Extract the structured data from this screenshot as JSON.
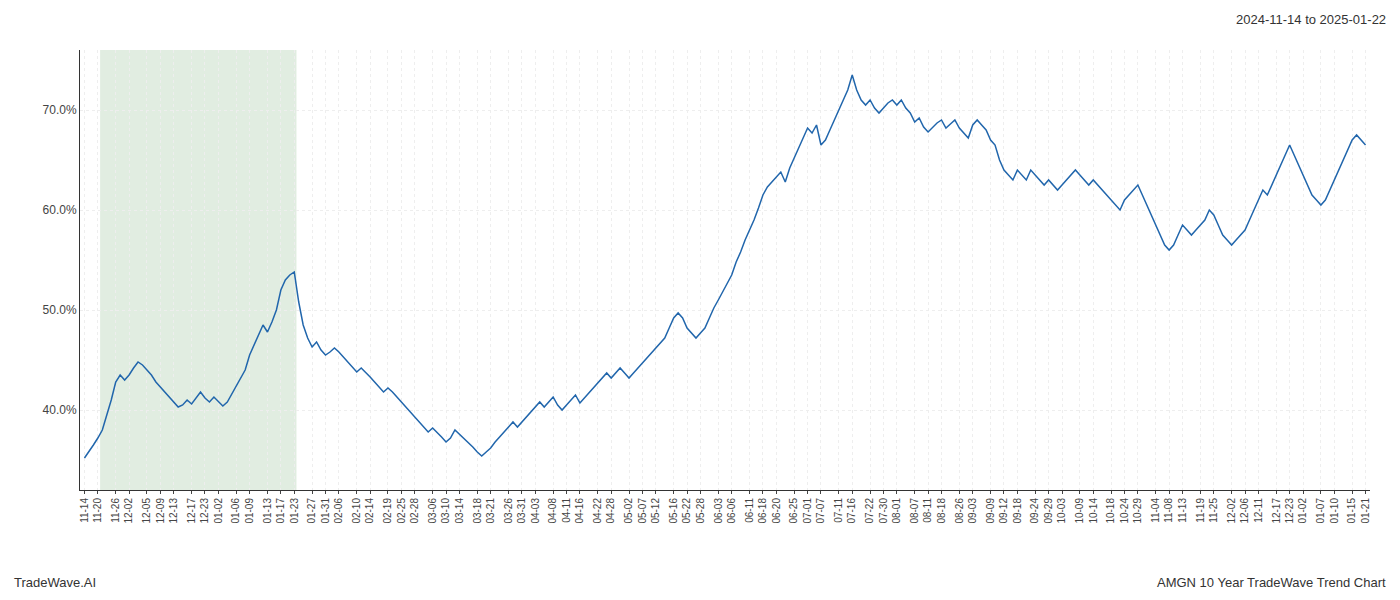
{
  "chart_data": {
    "type": "line",
    "annotations": [
      {
        "text": "2024-11-14 to 2025-01-22",
        "position": "top-right"
      },
      {
        "text": "TradeWave.AI",
        "position": "bottom-left"
      },
      {
        "text": "AMGN 10 Year TradeWave Trend Chart",
        "position": "bottom-right"
      }
    ],
    "color": "#2166ac",
    "shaded_span": {
      "start": 4,
      "end": 47,
      "color": "#c8dfc8"
    },
    "ylim": [
      32,
      76
    ],
    "yticks": [
      {
        "value": 40.0,
        "label": "40.0%"
      },
      {
        "value": 50.0,
        "label": "50.0%"
      },
      {
        "value": 60.0,
        "label": "60.0%"
      },
      {
        "value": 70.0,
        "label": "70.0%"
      }
    ],
    "grid": true,
    "categories": [
      "11-14",
      null,
      null,
      "11-20",
      null,
      null,
      null,
      "11-26",
      null,
      null,
      "12-02",
      null,
      null,
      null,
      "12-05",
      null,
      null,
      "12-09",
      null,
      null,
      "12-13",
      null,
      null,
      null,
      "12-17",
      null,
      null,
      "12-23",
      null,
      null,
      "01-02",
      null,
      null,
      null,
      "01-06",
      null,
      null,
      "01-09",
      null,
      null,
      null,
      "01-13",
      null,
      null,
      "01-17",
      null,
      null,
      "01-23",
      null,
      null,
      null,
      "01-27",
      null,
      null,
      "01-31",
      null,
      null,
      "02-06",
      null,
      null,
      null,
      "02-10",
      null,
      null,
      "02-14",
      null,
      null,
      null,
      "02-19",
      null,
      null,
      "02-25",
      null,
      null,
      "02-28",
      null,
      null,
      null,
      "03-06",
      null,
      null,
      "03-10",
      null,
      null,
      "03-14",
      null,
      null,
      null,
      "03-18",
      null,
      null,
      "03-21",
      null,
      null,
      null,
      "03-26",
      null,
      null,
      "03-31",
      null,
      null,
      "04-03",
      null,
      null,
      null,
      "04-08",
      null,
      null,
      "04-11",
      null,
      null,
      "04-16",
      null,
      null,
      null,
      "04-22",
      null,
      null,
      "04-28",
      null,
      null,
      null,
      "05-02",
      null,
      null,
      "05-07",
      null,
      null,
      "05-12",
      null,
      null,
      null,
      "05-16",
      null,
      null,
      "05-22",
      null,
      null,
      "05-28",
      null,
      null,
      null,
      "06-03",
      null,
      null,
      "06-06",
      null,
      null,
      null,
      "06-11",
      null,
      null,
      "06-18",
      null,
      null,
      "06-20",
      null,
      null,
      null,
      "06-25",
      null,
      null,
      "07-01",
      null,
      null,
      "07-07",
      null,
      null,
      null,
      "07-11",
      null,
      null,
      "07-16",
      null,
      null,
      null,
      "07-22",
      null,
      null,
      "07-30",
      null,
      null,
      "08-01",
      null,
      null,
      null,
      "08-07",
      null,
      null,
      "08-11",
      null,
      null,
      "08-18",
      null,
      null,
      null,
      "08-26",
      null,
      null,
      "09-03",
      null,
      null,
      null,
      "09-09",
      null,
      null,
      "09-12",
      null,
      null,
      "09-18",
      null,
      null,
      null,
      "09-24",
      null,
      null,
      "09-29",
      null,
      null,
      "10-03",
      null,
      null,
      null,
      "10-09",
      null,
      null,
      "10-14",
      null,
      null,
      null,
      "10-18",
      null,
      null,
      "10-24",
      null,
      null,
      "10-29",
      null,
      null,
      null,
      "11-04",
      null,
      null,
      "11-08",
      null,
      null,
      "11-13",
      null,
      null,
      null,
      "11-19",
      null,
      null,
      "11-25",
      null,
      null,
      null,
      "12-02",
      null,
      null,
      "12-06",
      null,
      null,
      "12-11",
      null,
      null,
      null,
      "12-17",
      null,
      null,
      "12-23",
      null,
      null,
      "01-02",
      null,
      null,
      null,
      "01-07",
      null,
      null,
      "01-10",
      null,
      null,
      null,
      "01-15",
      null,
      null,
      "01-21"
    ],
    "values": [
      35.2,
      35.8,
      36.5,
      37.2,
      38.0,
      39.5,
      41.0,
      42.8,
      43.5,
      43.0,
      43.5,
      44.2,
      44.8,
      44.5,
      44.0,
      43.5,
      42.8,
      42.3,
      41.8,
      41.2,
      40.8,
      40.3,
      40.5,
      41.0,
      40.6,
      41.2,
      41.8,
      41.2,
      40.8,
      41.3,
      40.9,
      40.4,
      40.8,
      41.6,
      42.3,
      43.2,
      44.0,
      45.5,
      46.5,
      47.5,
      48.5,
      47.8,
      48.8,
      50.0,
      52.0,
      53.0,
      53.5,
      53.8,
      50.8,
      48.5,
      47.2,
      46.3,
      46.8,
      46.0,
      45.5,
      45.8,
      46.2,
      45.8,
      45.3,
      44.8,
      44.3,
      43.8,
      44.2,
      43.8,
      43.3,
      42.8,
      42.3,
      41.8,
      42.2,
      41.8,
      41.3,
      40.8,
      40.3,
      39.8,
      39.3,
      38.8,
      38.3,
      37.8,
      38.2,
      37.8,
      37.3,
      36.8,
      37.2,
      38.0,
      37.6,
      37.2,
      36.8,
      36.3,
      35.8,
      35.4,
      35.8,
      36.2,
      36.8,
      37.3,
      37.8,
      38.3,
      38.8,
      38.3,
      38.8,
      39.3,
      39.8,
      40.3,
      40.8,
      40.3,
      40.8,
      41.3,
      40.5,
      40.0,
      40.5,
      41.0,
      41.5,
      40.7,
      41.2,
      41.7,
      42.2,
      42.7,
      43.2,
      43.7,
      43.2,
      43.7,
      44.2,
      43.7,
      43.2,
      43.7,
      44.2,
      44.7,
      45.2,
      45.7,
      46.2,
      46.7,
      47.2,
      48.2,
      49.2,
      49.7,
      49.2,
      48.2,
      47.7,
      47.2,
      47.7,
      48.2,
      49.2,
      50.2,
      51.0,
      51.8,
      52.6,
      53.5,
      54.8,
      55.8,
      57.0,
      58.0,
      59.0,
      60.2,
      61.5,
      62.3,
      62.8,
      63.2,
      63.8,
      62.8,
      64.2,
      65.2,
      66.2,
      67.2,
      68.2,
      67.7,
      68.5,
      66.5,
      67.0,
      68.0,
      69.0,
      70.0,
      71.0,
      72.0,
      73.5,
      72.0,
      71.0,
      70.5,
      71.0,
      70.2,
      69.7,
      70.2,
      70.7,
      71.0,
      70.5,
      71.0,
      70.2,
      69.7,
      68.8,
      69.2,
      68.3,
      67.8,
      68.2,
      68.7,
      69.0,
      68.2,
      68.6,
      69.0,
      68.2,
      67.7,
      67.2,
      68.5,
      69.0,
      68.5,
      68.0,
      67.0,
      66.5,
      65.0,
      64.0,
      63.5,
      63.0,
      64.0,
      63.5,
      63.0,
      64.0,
      63.5,
      63.0,
      62.5,
      63.0,
      62.5,
      62.0,
      62.5,
      63.0,
      63.5,
      64.0,
      63.5,
      63.0,
      62.5,
      63.0,
      62.5,
      62.0,
      61.5,
      61.0,
      60.5,
      60.0,
      61.0,
      61.5,
      62.0,
      62.5,
      61.5,
      60.5,
      59.5,
      58.5,
      57.5,
      56.5,
      56.0,
      56.5,
      57.5,
      58.5,
      58.0,
      57.5,
      58.0,
      58.5,
      59.0,
      60.0,
      59.5,
      58.5,
      57.5,
      57.0,
      56.5,
      57.0,
      57.5,
      58.0,
      59.0,
      60.0,
      61.0,
      62.0,
      61.5,
      62.5,
      63.5,
      64.5,
      65.5,
      66.5,
      65.5,
      64.5,
      63.5,
      62.5,
      61.5,
      61.0,
      60.5,
      61.0,
      62.0,
      63.0,
      64.0,
      65.0,
      66.0,
      67.0,
      67.5,
      67.0,
      66.5
    ]
  }
}
